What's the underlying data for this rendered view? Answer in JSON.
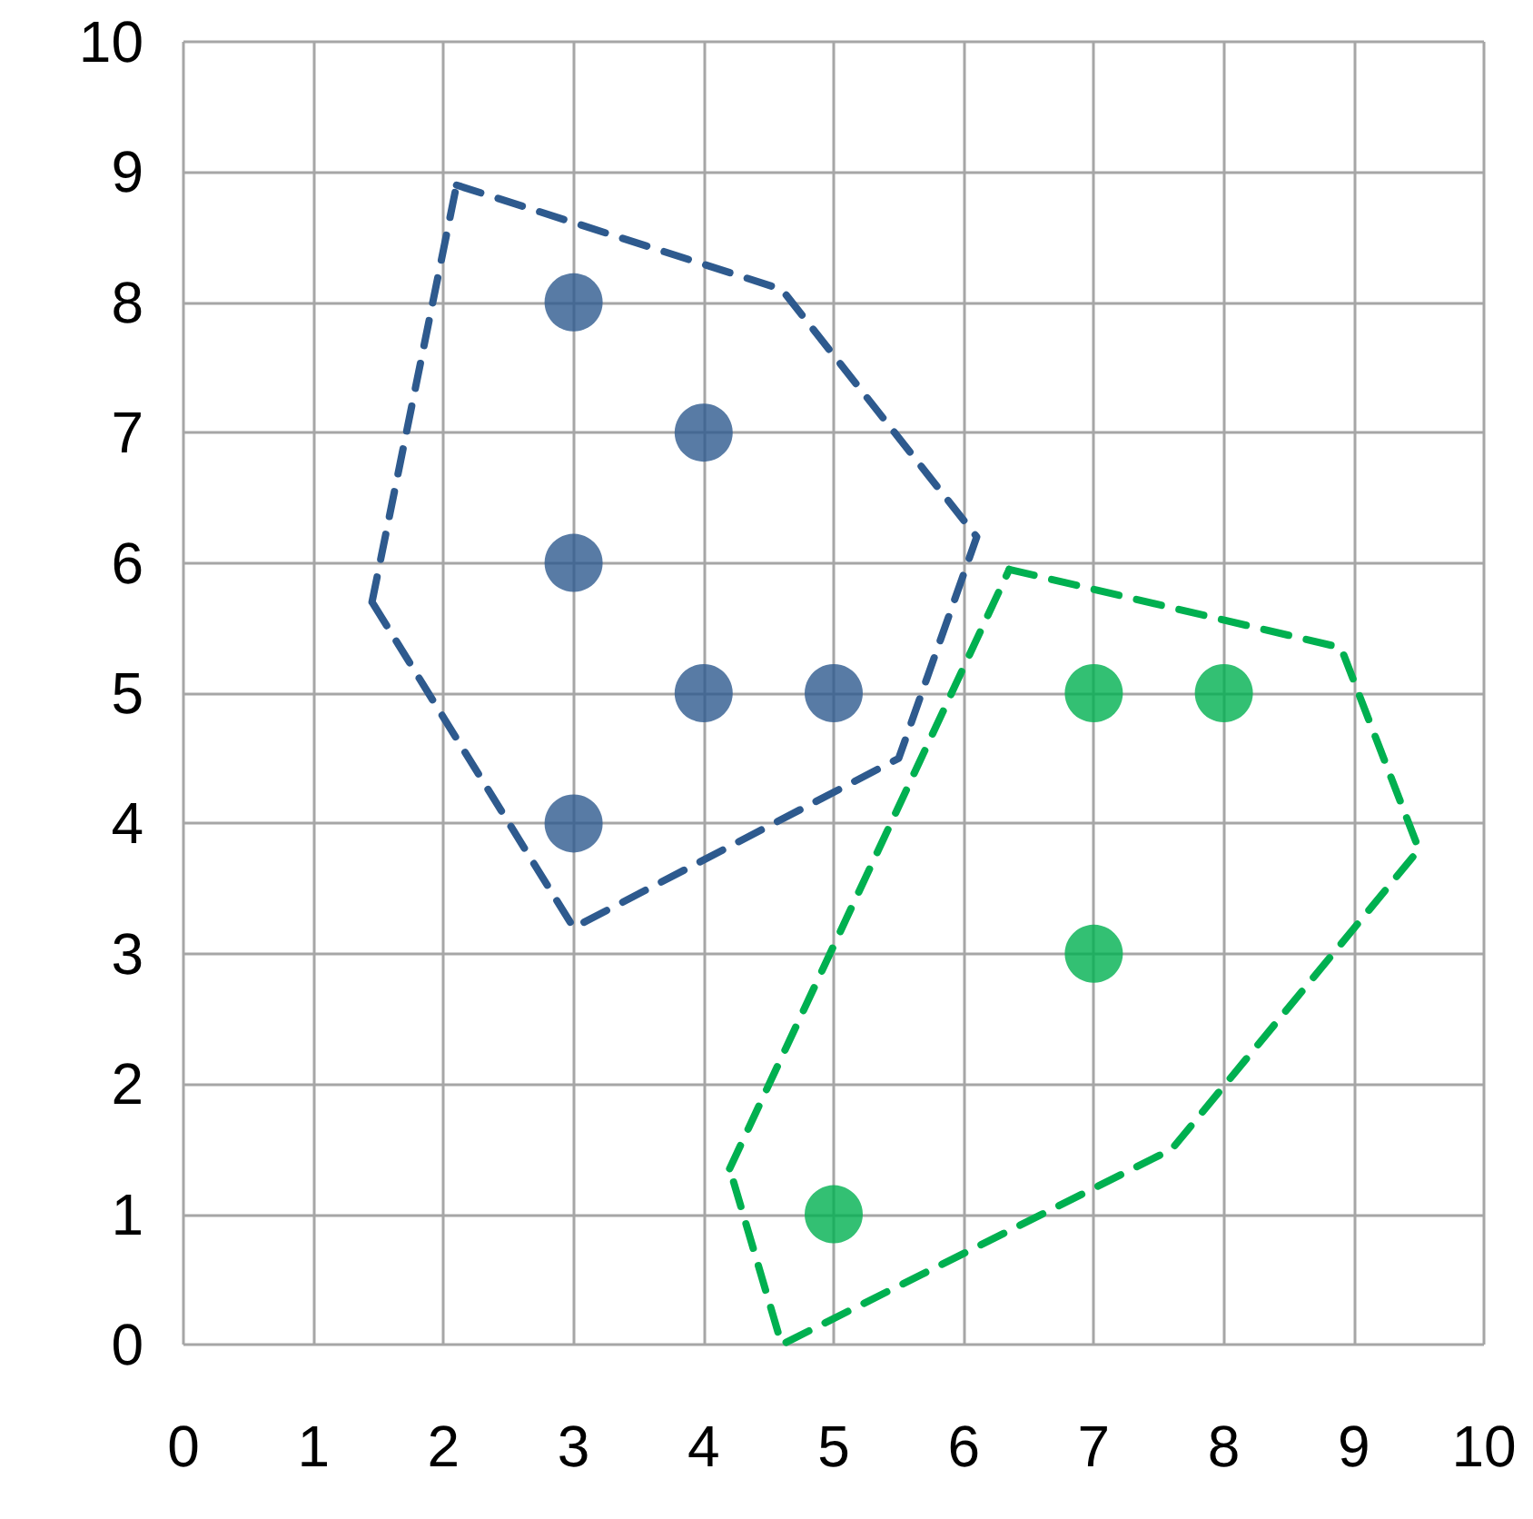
{
  "chart_data": {
    "type": "scatter",
    "xlim": [
      0,
      10
    ],
    "ylim": [
      0,
      10
    ],
    "xticks": [
      0,
      1,
      2,
      3,
      4,
      5,
      6,
      7,
      8,
      9,
      10
    ],
    "yticks": [
      0,
      1,
      2,
      3,
      4,
      5,
      6,
      7,
      8,
      9,
      10
    ],
    "grid": true,
    "marker": "circle",
    "series": [
      {
        "color": "#2e5a8e",
        "x": [
          3,
          4,
          3,
          4,
          5,
          3
        ],
        "values": [
          8,
          7,
          6,
          5,
          5,
          4
        ]
      },
      {
        "color": "#00b050",
        "x": [
          7,
          8,
          7,
          5
        ],
        "values": [
          5,
          5,
          3,
          1
        ]
      },
      {
        "type": "line",
        "color": "#2e5a8e",
        "line_style": "dashed",
        "marker": "none",
        "x": [
          2.1,
          4.6,
          6.1,
          5.5,
          3,
          1.45
        ],
        "values": [
          8.9,
          8.1,
          6.2,
          4.5,
          3.2,
          5.7
        ]
      },
      {
        "type": "line",
        "color": "#2e5a8e",
        "line_style": "dashed",
        "marker": "none",
        "x": [
          1.45,
          2.1
        ],
        "values": [
          5.7,
          8.9
        ]
      },
      {
        "type": "line",
        "color": "#00b050",
        "line_style": "dashed",
        "marker": "none",
        "x": [
          6.35,
          8.9,
          9.5,
          7.6,
          4.6,
          4.2
        ],
        "values": [
          5.95,
          5.35,
          3.8,
          1.5,
          0,
          1.35
        ]
      },
      {
        "type": "line",
        "color": "#00b050",
        "line_style": "dashed",
        "marker": "none",
        "x": [
          4.2,
          6.35
        ],
        "values": [
          1.35,
          5.95
        ]
      }
    ]
  }
}
